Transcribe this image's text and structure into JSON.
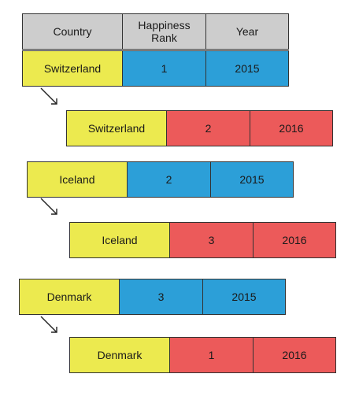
{
  "colors": {
    "header": "#cdcdcd",
    "country": "#ecea4f",
    "year_2015": "#2c9fd8",
    "year_2016": "#ec5a5a",
    "border": "#333333"
  },
  "header": {
    "country": "Country",
    "rank": "Happiness Rank",
    "year": "Year"
  },
  "rows": [
    {
      "country": "Switzerland",
      "rank": "1",
      "year": "2015"
    },
    {
      "country": "Switzerland",
      "rank": "2",
      "year": "2016"
    },
    {
      "country": "Iceland",
      "rank": "2",
      "year": "2015"
    },
    {
      "country": "Iceland",
      "rank": "3",
      "year": "2016"
    },
    {
      "country": "Denmark",
      "rank": "3",
      "year": "2015"
    },
    {
      "country": "Denmark",
      "rank": "1",
      "year": "2016"
    }
  ]
}
